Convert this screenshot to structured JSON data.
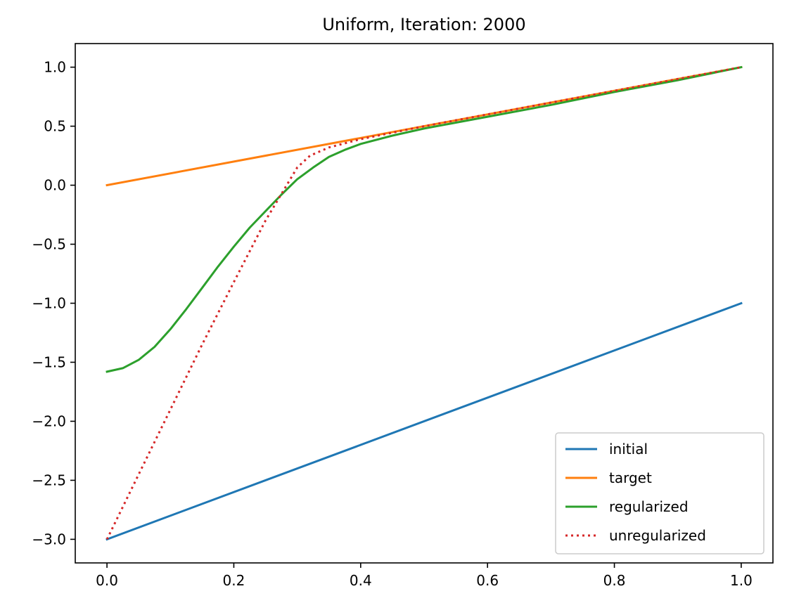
{
  "chart_data": {
    "type": "line",
    "title": "Uniform, Iteration: 2000",
    "xlabel": "",
    "ylabel": "",
    "xlim": [
      -0.05,
      1.05
    ],
    "ylim": [
      -3.2,
      1.2
    ],
    "grid": false,
    "legend_position": "lower-right",
    "xticks": [
      0.0,
      0.2,
      0.4,
      0.6,
      0.8,
      1.0
    ],
    "xtick_labels": [
      "0.0",
      "0.2",
      "0.4",
      "0.6",
      "0.8",
      "1.0"
    ],
    "yticks": [
      1.0,
      0.5,
      0.0,
      -0.5,
      -1.0,
      -1.5,
      -2.0,
      -2.5,
      -3.0
    ],
    "ytick_labels": [
      "1.0",
      "0.5",
      "0.0",
      "−0.5",
      "−1.0",
      "−1.5",
      "−2.0",
      "−2.5",
      "−3.0"
    ],
    "series": [
      {
        "name": "initial",
        "color": "#1f77b4",
        "style": "solid",
        "x": [
          0.0,
          1.0
        ],
        "y": [
          -3.0,
          -1.0
        ]
      },
      {
        "name": "target",
        "color": "#ff7f0e",
        "style": "solid",
        "x": [
          0.0,
          1.0
        ],
        "y": [
          0.0,
          1.0
        ]
      },
      {
        "name": "regularized",
        "color": "#2ca02c",
        "style": "solid",
        "x": [
          0.0,
          0.025,
          0.05,
          0.075,
          0.1,
          0.125,
          0.15,
          0.175,
          0.2,
          0.225,
          0.25,
          0.275,
          0.3,
          0.325,
          0.35,
          0.375,
          0.4,
          0.45,
          0.5,
          0.55,
          0.6,
          0.7,
          0.8,
          0.9,
          1.0
        ],
        "y": [
          -1.58,
          -1.55,
          -1.48,
          -1.37,
          -1.22,
          -1.05,
          -0.87,
          -0.69,
          -0.52,
          -0.36,
          -0.22,
          -0.08,
          0.05,
          0.15,
          0.24,
          0.3,
          0.35,
          0.42,
          0.48,
          0.53,
          0.58,
          0.68,
          0.79,
          0.89,
          1.0
        ]
      },
      {
        "name": "unregularized",
        "color": "#d62728",
        "style": "dotted",
        "x": [
          0.0,
          0.05,
          0.1,
          0.15,
          0.2,
          0.25,
          0.3,
          0.32,
          0.35,
          0.4,
          0.5,
          0.6,
          0.7,
          0.8,
          0.9,
          1.0
        ],
        "y": [
          -3.0,
          -2.45,
          -1.9,
          -1.35,
          -0.82,
          -0.3,
          0.15,
          0.25,
          0.32,
          0.39,
          0.5,
          0.6,
          0.7,
          0.8,
          0.9,
          1.0
        ]
      }
    ]
  }
}
